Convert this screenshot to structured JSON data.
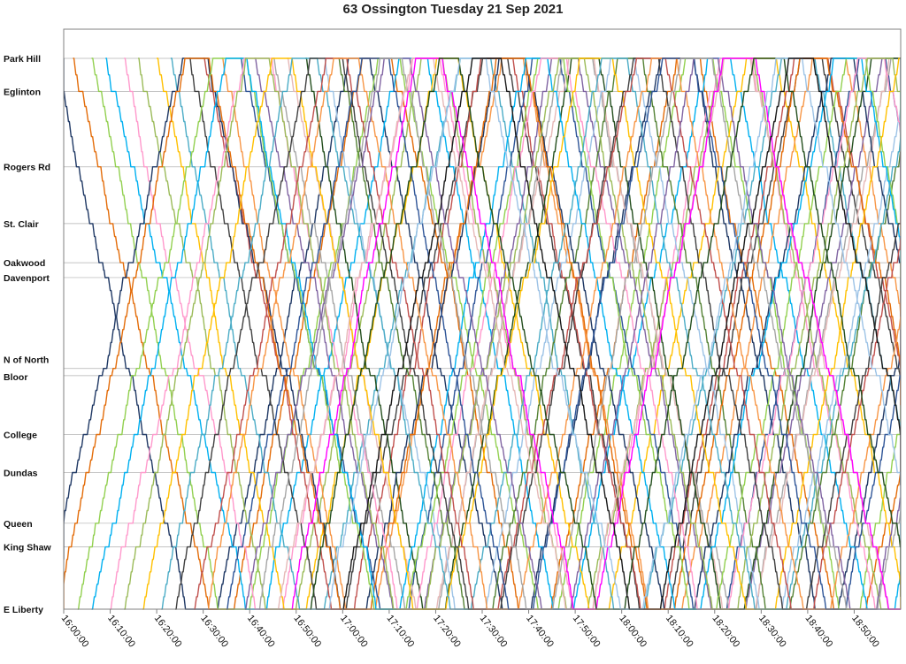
{
  "chart_data": {
    "type": "line",
    "title": "63 Ossington Tuesday 21 Sep 2021",
    "xlabel": "",
    "ylabel": "",
    "x_range": [
      "16:00:00",
      "19:00:00"
    ],
    "x_ticks": [
      "16:00:00",
      "16:10:00",
      "16:20:00",
      "16:30:00",
      "16:40:00",
      "16:50:00",
      "17:00:00",
      "17:10:00",
      "17:20:00",
      "17:30:00",
      "17:40:00",
      "17:50:00",
      "18:00:00",
      "18:10:00",
      "18:20:00",
      "18:30:00",
      "18:40:00",
      "18:50:00"
    ],
    "stops": [
      {
        "name": "Park Hill",
        "pos": 0.0
      },
      {
        "name": "Eglinton",
        "pos": 0.06
      },
      {
        "name": "Rogers Rd",
        "pos": 0.197
      },
      {
        "name": "St. Clair",
        "pos": 0.3
      },
      {
        "name": "Oakwood",
        "pos": 0.371
      },
      {
        "name": "Davenport",
        "pos": 0.398
      },
      {
        "name": "N of North",
        "pos": 0.563
      },
      {
        "name": "Bloor",
        "pos": 0.576
      },
      {
        "name": "College",
        "pos": 0.683
      },
      {
        "name": "Dundas",
        "pos": 0.752
      },
      {
        "name": "Queen",
        "pos": 0.844
      },
      {
        "name": "King Shaw",
        "pos": 0.887
      },
      {
        "name": "E Liberty",
        "pos": 1.0
      }
    ],
    "grid": true,
    "legend": "none",
    "series_colors": [
      "#1f3864",
      "#e36c09",
      "#92d050",
      "#00b0f0",
      "#ff99cc",
      "#9bbb59",
      "#ffc000",
      "#4bacc6",
      "#404040",
      "#c0504d",
      "#f79646",
      "#2f5597",
      "#8064a2",
      "#a6a6a6",
      "#e6b9b8",
      "#ff00ff",
      "#244f1e",
      "#9dc3e6",
      "#548235",
      "#1a1a1a"
    ],
    "series": [
      {
        "color_index": 0,
        "start": "15:58:00",
        "start_at": "Park Hill",
        "direction": "south"
      },
      {
        "color_index": 1,
        "start": "16:02:00",
        "start_at": "Park Hill",
        "direction": "south"
      },
      {
        "color_index": 2,
        "start": "16:06:00",
        "start_at": "Park Hill",
        "direction": "south"
      },
      {
        "color_index": 3,
        "start": "16:09:00",
        "start_at": "Park Hill",
        "direction": "south"
      },
      {
        "color_index": 4,
        "start": "16:13:00",
        "start_at": "Park Hill",
        "direction": "south"
      },
      {
        "color_index": 5,
        "start": "16:16:00",
        "start_at": "Park Hill",
        "direction": "south"
      },
      {
        "color_index": 6,
        "start": "16:20:00",
        "start_at": "Park Hill",
        "direction": "south"
      },
      {
        "color_index": 7,
        "start": "16:23:00",
        "start_at": "Park Hill",
        "direction": "south"
      },
      {
        "color_index": 8,
        "start": "16:27:00",
        "start_at": "Park Hill",
        "direction": "south"
      },
      {
        "color_index": 9,
        "start": "16:30:00",
        "start_at": "Park Hill",
        "direction": "south"
      },
      {
        "color_index": 10,
        "start": "16:34:00",
        "start_at": "Park Hill",
        "direction": "south"
      },
      {
        "color_index": 11,
        "start": "16:38:00",
        "start_at": "Park Hill",
        "direction": "south"
      },
      {
        "color_index": 12,
        "start": "16:41:00",
        "start_at": "Park Hill",
        "direction": "south"
      },
      {
        "color_index": 13,
        "start": "16:45:00",
        "start_at": "Park Hill",
        "direction": "south"
      },
      {
        "color_index": 14,
        "start": "16:48:00",
        "start_at": "Park Hill",
        "direction": "south"
      },
      {
        "color_index": 16,
        "start": "16:52:00",
        "start_at": "Park Hill",
        "direction": "south"
      },
      {
        "color_index": 17,
        "start": "16:56:00",
        "start_at": "Park Hill",
        "direction": "south"
      },
      {
        "color_index": 18,
        "start": "16:59:00",
        "start_at": "Park Hill",
        "direction": "south"
      },
      {
        "color_index": 0,
        "start": "15:55:00",
        "start_at": "E Liberty",
        "direction": "north"
      },
      {
        "color_index": 1,
        "start": "15:59:00",
        "start_at": "E Liberty",
        "direction": "north"
      },
      {
        "color_index": 2,
        "start": "16:03:00",
        "start_at": "E Liberty",
        "direction": "north"
      },
      {
        "color_index": 3,
        "start": "16:06:00",
        "start_at": "E Liberty",
        "direction": "north"
      },
      {
        "color_index": 4,
        "start": "16:10:00",
        "start_at": "E Liberty",
        "direction": "north"
      },
      {
        "color_index": 5,
        "start": "16:13:00",
        "start_at": "E Liberty",
        "direction": "north"
      },
      {
        "color_index": 6,
        "start": "16:17:00",
        "start_at": "E Liberty",
        "direction": "north"
      },
      {
        "color_index": 7,
        "start": "16:21:00",
        "start_at": "E Liberty",
        "direction": "north"
      },
      {
        "color_index": 8,
        "start": "16:24:00",
        "start_at": "E Liberty",
        "direction": "north"
      },
      {
        "color_index": 9,
        "start": "16:28:00",
        "start_at": "E Liberty",
        "direction": "north"
      },
      {
        "color_index": 10,
        "start": "16:31:00",
        "start_at": "E Liberty",
        "direction": "north"
      },
      {
        "color_index": 11,
        "start": "16:35:00",
        "start_at": "E Liberty",
        "direction": "north"
      },
      {
        "color_index": 12,
        "start": "16:39:00",
        "start_at": "E Liberty",
        "direction": "north"
      },
      {
        "color_index": 13,
        "start": "16:42:00",
        "start_at": "E Liberty",
        "direction": "north"
      },
      {
        "color_index": 14,
        "start": "16:46:00",
        "start_at": "E Liberty",
        "direction": "north"
      },
      {
        "color_index": 15,
        "start": "16:49:00",
        "start_at": "E Liberty",
        "direction": "north"
      },
      {
        "color_index": 16,
        "start": "16:53:00",
        "start_at": "E Liberty",
        "direction": "north"
      },
      {
        "color_index": 17,
        "start": "16:57:00",
        "start_at": "E Liberty",
        "direction": "north"
      },
      {
        "color_index": 19,
        "start": "17:00:00",
        "start_at": "E Liberty",
        "direction": "north"
      }
    ]
  }
}
